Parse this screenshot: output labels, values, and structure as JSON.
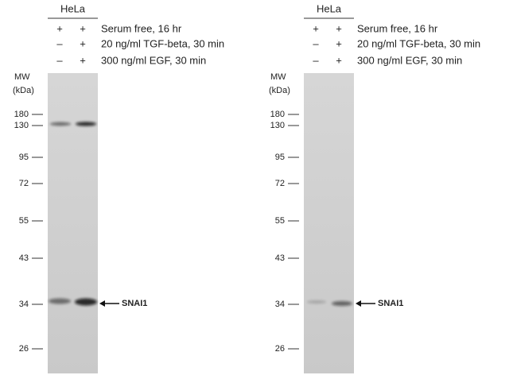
{
  "panels": [
    {
      "cell_line": "HeLa",
      "treatments": [
        {
          "signs": [
            "+",
            "+"
          ],
          "label": "Serum free, 16 hr"
        },
        {
          "signs": [
            "–",
            "+"
          ],
          "label": "20 ng/ml TGF-beta, 30 min"
        },
        {
          "signs": [
            "–",
            "+"
          ],
          "label": "300 ng/ml EGF, 30 min"
        }
      ],
      "mw_title": "MW",
      "mw_unit": "(kDa)",
      "markers": [
        "180",
        "130",
        "95",
        "72",
        "55",
        "43",
        "34",
        "26"
      ],
      "band_label": "SNAI1"
    },
    {
      "cell_line": "HeLa",
      "treatments": [
        {
          "signs": [
            "+",
            "+"
          ],
          "label": "Serum free, 16 hr"
        },
        {
          "signs": [
            "–",
            "+"
          ],
          "label": "20 ng/ml TGF-beta, 30 min"
        },
        {
          "signs": [
            "–",
            "+"
          ],
          "label": "300 ng/ml EGF, 30 min"
        }
      ],
      "mw_title": "MW",
      "mw_unit": "(kDa)",
      "markers": [
        "180",
        "130",
        "95",
        "72",
        "55",
        "43",
        "34",
        "26"
      ],
      "band_label": "SNAI1"
    }
  ]
}
